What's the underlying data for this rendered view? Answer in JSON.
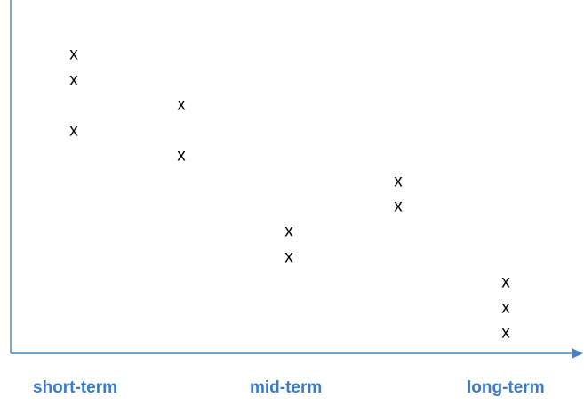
{
  "diagram": {
    "marker_glyph": "x",
    "axis_color": "#4a7fc1",
    "label_color": "#3a7bc8",
    "categories": [
      "short-term",
      "mid-term",
      "long-term"
    ],
    "columns": [
      {
        "marks": 3
      },
      {
        "marks": 2
      },
      {
        "marks": 2
      },
      {
        "marks": 2
      },
      {
        "marks": 3
      }
    ]
  }
}
